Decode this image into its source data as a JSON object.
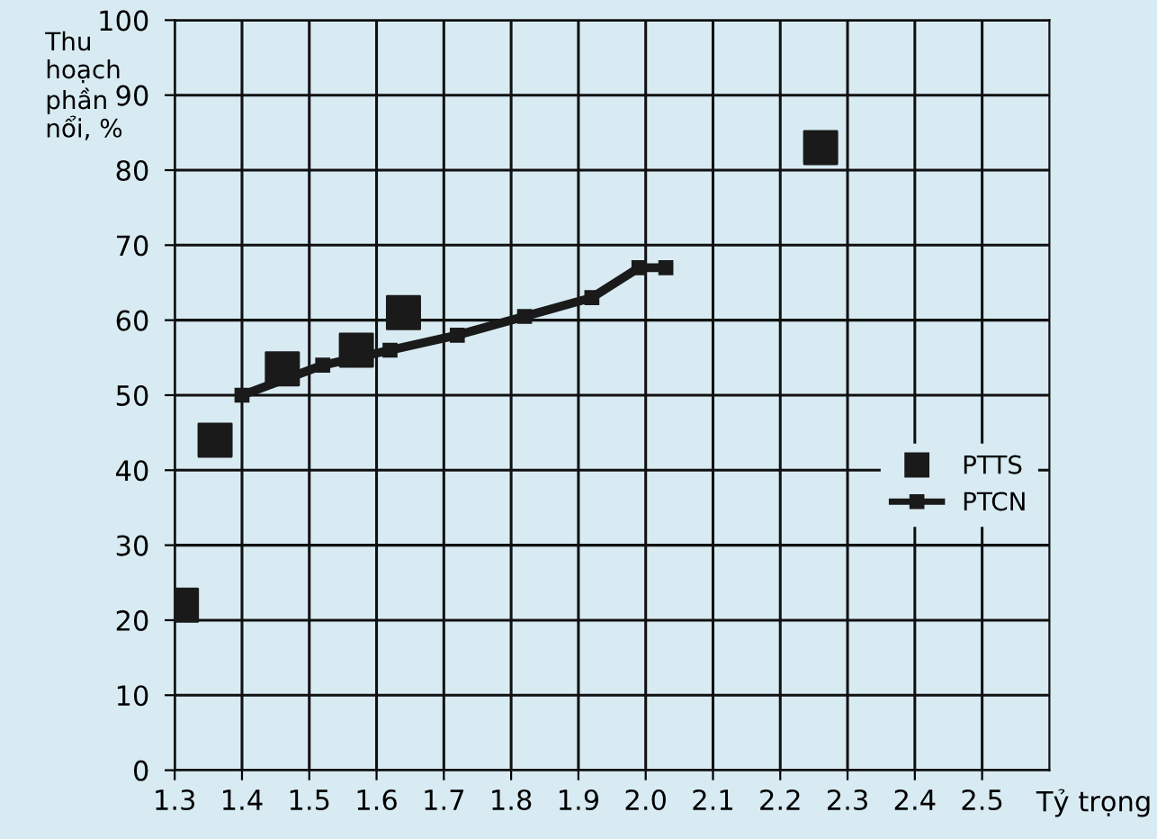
{
  "chart_data": {
    "type": "line",
    "xlabel": "Tỷ trọng",
    "ylabel": "Thu\nhoạch\nphần\nnổi, %",
    "series": [
      {
        "name": "PTTS",
        "type": "scatter",
        "color": "#1a1a1a",
        "marker": "square",
        "x": [
          1.31,
          1.36,
          1.46,
          1.57,
          1.64,
          2.26
        ],
        "values": [
          22,
          44,
          53.5,
          56,
          61,
          83
        ]
      },
      {
        "name": "PTCN",
        "color": "#1a1a1a",
        "marker": "square",
        "line_style": "solid",
        "x": [
          1.4,
          1.52,
          1.62,
          1.72,
          1.82,
          1.92,
          1.99,
          2.03
        ],
        "values": [
          50,
          54,
          56,
          58,
          60.5,
          63,
          67,
          67
        ]
      }
    ],
    "xlim": [
      1.3,
      2.6
    ],
    "xticks": [
      1.3,
      1.4,
      1.5,
      1.6,
      1.7,
      1.8,
      1.9,
      {
        "value": 2,
        "label": "2.0"
      },
      2.1,
      2.2,
      2.3,
      2.4,
      2.5
    ],
    "ylim": [
      0,
      100
    ],
    "yticks": [
      0,
      10,
      20,
      30,
      40,
      50,
      60,
      70,
      80,
      90,
      100
    ],
    "grid": true,
    "legend": "right"
  }
}
